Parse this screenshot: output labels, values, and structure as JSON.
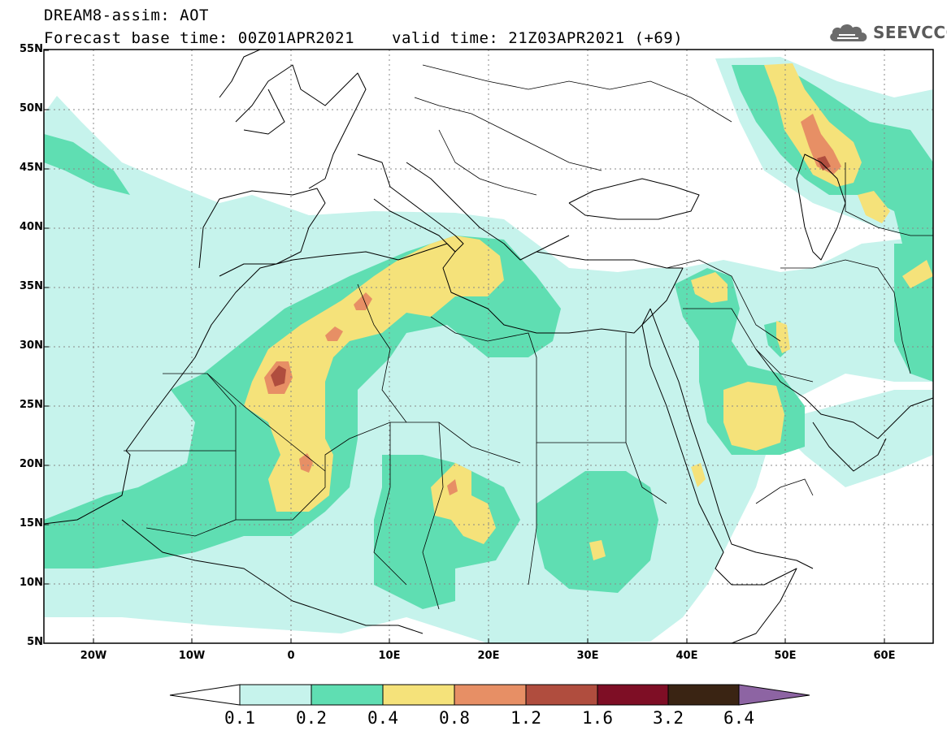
{
  "header": {
    "title_line_1": "DREAM8-assim: AOT",
    "title_line_2": "Forecast base time: 00Z01APR2021",
    "valid_time": "valid time: 21Z03APR2021 (+69)"
  },
  "logo": {
    "text": "SEEVCCC",
    "icon": "cloud-icon"
  },
  "map": {
    "lat_ticks": [
      "55N",
      "50N",
      "45N",
      "40N",
      "35N",
      "30N",
      "25N",
      "20N",
      "15N",
      "10N",
      "5N"
    ],
    "lon_ticks": [
      "20W",
      "10W",
      "0",
      "10E",
      "20E",
      "30E",
      "40E",
      "50E",
      "60E"
    ],
    "lon_range": [
      -25,
      65
    ],
    "lat_range": [
      5,
      55
    ]
  },
  "colorbar": {
    "labels": [
      "0.1",
      "0.2",
      "0.4",
      "0.8",
      "1.2",
      "1.6",
      "3.2",
      "6.4"
    ],
    "colors": [
      "#ffffff",
      "#c6f3ec",
      "#5fdeb2",
      "#f5e27a",
      "#e78f65",
      "#b04d3e",
      "#7e0e25",
      "#3a2413",
      "#8d64a3"
    ]
  }
}
